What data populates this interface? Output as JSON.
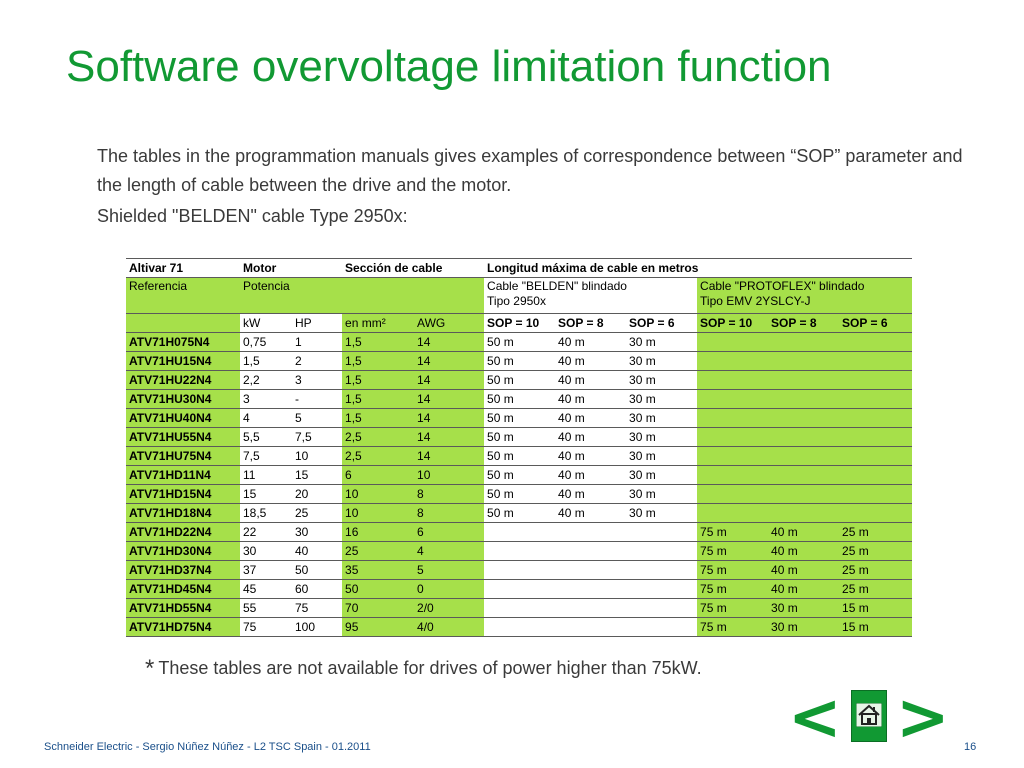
{
  "title": "Software overvoltage limitation function",
  "intro": {
    "paragraph1": "The tables in the programmation manuals gives examples of correspondence between “SOP” parameter and the length of cable between the drive and the motor.",
    "paragraph2": "Shielded \"BELDEN\" cable Type 2950x:"
  },
  "table": {
    "header": {
      "altivar": "Altivar 71",
      "motor": "Motor",
      "seccion": "Sección de cable",
      "longitud": "Longitud máxima de cable en metros"
    },
    "subheader": {
      "referencia": "Referencia",
      "potencia": "Potencia",
      "belden_line1": "Cable \"BELDEN\" blindado",
      "belden_line2": "Tipo 2950x",
      "protoflex_line1": "Cable \"PROTOFLEX\" blindado",
      "protoflex_line2": "Tipo EMV 2YSLCY-J"
    },
    "units": [
      "kW",
      "HP",
      "en mm²",
      "AWG",
      "SOP = 10",
      "SOP = 8",
      "SOP = 6",
      "SOP = 10",
      "SOP = 8",
      "SOP = 6"
    ],
    "rows": [
      {
        "ref": "ATV71H075N4",
        "kw": "0,75",
        "hp": "1",
        "mm2": "1,5",
        "awg": "14",
        "b10": "50 m",
        "b8": "40 m",
        "b6": "30 m",
        "p10": "",
        "p8": "",
        "p6": ""
      },
      {
        "ref": "ATV71HU15N4",
        "kw": "1,5",
        "hp": "2",
        "mm2": "1,5",
        "awg": "14",
        "b10": "50 m",
        "b8": "40 m",
        "b6": "30 m",
        "p10": "",
        "p8": "",
        "p6": ""
      },
      {
        "ref": "ATV71HU22N4",
        "kw": "2,2",
        "hp": "3",
        "mm2": "1,5",
        "awg": "14",
        "b10": "50 m",
        "b8": "40 m",
        "b6": "30 m",
        "p10": "",
        "p8": "",
        "p6": ""
      },
      {
        "ref": "ATV71HU30N4",
        "kw": "3",
        "hp": "-",
        "mm2": "1,5",
        "awg": "14",
        "b10": "50 m",
        "b8": "40 m",
        "b6": "30 m",
        "p10": "",
        "p8": "",
        "p6": ""
      },
      {
        "ref": "ATV71HU40N4",
        "kw": "4",
        "hp": "5",
        "mm2": "1,5",
        "awg": "14",
        "b10": "50 m",
        "b8": "40 m",
        "b6": "30 m",
        "p10": "",
        "p8": "",
        "p6": ""
      },
      {
        "ref": "ATV71HU55N4",
        "kw": "5,5",
        "hp": "7,5",
        "mm2": "2,5",
        "awg": "14",
        "b10": "50 m",
        "b8": "40 m",
        "b6": "30 m",
        "p10": "",
        "p8": "",
        "p6": ""
      },
      {
        "ref": "ATV71HU75N4",
        "kw": "7,5",
        "hp": "10",
        "mm2": "2,5",
        "awg": "14",
        "b10": "50 m",
        "b8": "40 m",
        "b6": "30 m",
        "p10": "",
        "p8": "",
        "p6": ""
      },
      {
        "ref": "ATV71HD11N4",
        "kw": "11",
        "hp": "15",
        "mm2": "6",
        "awg": "10",
        "b10": "50 m",
        "b8": "40 m",
        "b6": "30 m",
        "p10": "",
        "p8": "",
        "p6": ""
      },
      {
        "ref": "ATV71HD15N4",
        "kw": "15",
        "hp": "20",
        "mm2": "10",
        "awg": "8",
        "b10": "50 m",
        "b8": "40 m",
        "b6": "30 m",
        "p10": "",
        "p8": "",
        "p6": ""
      },
      {
        "ref": "ATV71HD18N4",
        "kw": "18,5",
        "hp": "25",
        "mm2": "10",
        "awg": "8",
        "b10": "50 m",
        "b8": "40 m",
        "b6": "30 m",
        "p10": "",
        "p8": "",
        "p6": ""
      },
      {
        "ref": "ATV71HD22N4",
        "kw": "22",
        "hp": "30",
        "mm2": "16",
        "awg": "6",
        "b10": "",
        "b8": "",
        "b6": "",
        "p10": "75 m",
        "p8": "40 m",
        "p6": "25 m"
      },
      {
        "ref": "ATV71HD30N4",
        "kw": "30",
        "hp": "40",
        "mm2": "25",
        "awg": "4",
        "b10": "",
        "b8": "",
        "b6": "",
        "p10": "75 m",
        "p8": "40 m",
        "p6": "25 m"
      },
      {
        "ref": "ATV71HD37N4",
        "kw": "37",
        "hp": "50",
        "mm2": "35",
        "awg": "5",
        "b10": "",
        "b8": "",
        "b6": "",
        "p10": "75 m",
        "p8": "40 m",
        "p6": "25 m"
      },
      {
        "ref": "ATV71HD45N4",
        "kw": "45",
        "hp": "60",
        "mm2": "50",
        "awg": "0",
        "b10": "",
        "b8": "",
        "b6": "",
        "p10": "75 m",
        "p8": "40 m",
        "p6": "25 m"
      },
      {
        "ref": "ATV71HD55N4",
        "kw": "55",
        "hp": "75",
        "mm2": "70",
        "awg": "2/0",
        "b10": "",
        "b8": "",
        "b6": "",
        "p10": "75 m",
        "p8": "30 m",
        "p6": "15 m"
      },
      {
        "ref": "ATV71HD75N4",
        "kw": "75",
        "hp": "100",
        "mm2": "95",
        "awg": "4/0",
        "b10": "",
        "b8": "",
        "b6": "",
        "p10": "75 m",
        "p8": "30 m",
        "p6": "15 m"
      }
    ]
  },
  "note": {
    "star": "*",
    "text": "These tables are not available for drives of power higher than 75kW."
  },
  "footer": {
    "credit": "Schneider Electric - Sergio Núñez Núñez - L2 TSC Spain - 01.2011",
    "page": "16"
  },
  "nav": {
    "prev_glyph": "<",
    "next_glyph": ">",
    "home_icon": "home-icon"
  },
  "colors": {
    "title": "#119933",
    "table_fill": "#a6e04a",
    "nav": "#119933"
  }
}
